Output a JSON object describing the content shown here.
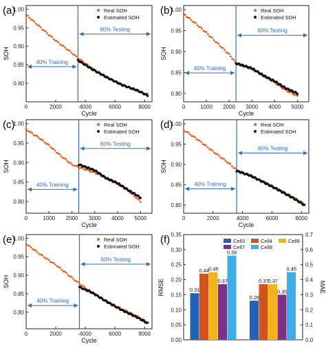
{
  "colors": {
    "real": "#E8601C",
    "estimated": "#111111",
    "axis": "#222222",
    "divider": "#2E6DB4",
    "annotation": "#2E6DB4"
  },
  "chart_data": [
    {
      "type": "scatter",
      "panel_label": "(a)",
      "xlabel": "Cycle",
      "ylabel": "SOH",
      "xlim": [
        0,
        8500
      ],
      "ylim": [
        0.75,
        1.01
      ],
      "xticks": [
        0,
        2000,
        4000,
        6000,
        8000
      ],
      "yticks": [
        0.8,
        0.85,
        0.9,
        0.95,
        1.0
      ],
      "legend": [
        "Real SOH",
        "Estimated SOH"
      ],
      "legend_placement": "top-right",
      "split_cycle": 3500,
      "train_label": "40% Training",
      "test_label": "60% Testing",
      "train_arrow_y": 0.845,
      "test_arrow_y": 0.933,
      "series": [
        {
          "name": "Real SOH",
          "x": [
            0,
            1000,
            2000,
            3000,
            3500,
            4500,
            5500,
            6500,
            7500,
            8200
          ],
          "y": [
            0.985,
            0.95,
            0.915,
            0.885,
            0.868,
            0.839,
            0.815,
            0.796,
            0.78,
            0.77
          ]
        },
        {
          "name": "Estimated SOH",
          "x": [
            3500,
            4500,
            5500,
            6500,
            7500,
            8200
          ],
          "y": [
            0.862,
            0.837,
            0.815,
            0.795,
            0.781,
            0.767
          ]
        }
      ]
    },
    {
      "type": "scatter",
      "panel_label": "(b)",
      "xlabel": "Cycle",
      "ylabel": "SOH",
      "xlim": [
        0,
        5500
      ],
      "ylim": [
        0.78,
        1.01
      ],
      "xticks": [
        0,
        1000,
        2000,
        3000,
        4000,
        5000
      ],
      "yticks": [
        0.8,
        0.85,
        0.9,
        0.95,
        1.0
      ],
      "legend": [
        "Real SOH",
        "Estimated SOH"
      ],
      "legend_placement": "top-right",
      "split_cycle": 2300,
      "train_label": "40% Training",
      "test_label": "60% Testing",
      "train_arrow_y": 0.849,
      "test_arrow_y": 0.939,
      "series": [
        {
          "name": "Real SOH",
          "x": [
            0,
            500,
            1000,
            1500,
            2000,
            2300,
            3000,
            3500,
            4000,
            4500,
            5000
          ],
          "y": [
            0.99,
            0.968,
            0.945,
            0.919,
            0.893,
            0.873,
            0.858,
            0.842,
            0.826,
            0.807,
            0.794
          ]
        },
        {
          "name": "Estimated SOH",
          "x": [
            2300,
            3000,
            3500,
            4000,
            4500,
            5000
          ],
          "y": [
            0.872,
            0.86,
            0.843,
            0.829,
            0.812,
            0.8
          ]
        }
      ]
    },
    {
      "type": "scatter",
      "panel_label": "(c)",
      "xlabel": "Cycle",
      "ylabel": "SOH",
      "xlim": [
        0,
        5500
      ],
      "ylim": [
        0.77,
        1.01
      ],
      "xticks": [
        0,
        1000,
        2000,
        3000,
        4000,
        5000
      ],
      "yticks": [
        0.8,
        0.85,
        0.9,
        0.95,
        1.0
      ],
      "legend": [
        "Real SOH",
        "Estimated SOH"
      ],
      "legend_placement": "top-right",
      "split_cycle": 2300,
      "train_label": "40% Training",
      "test_label": "60% Testing",
      "train_arrow_y": 0.831,
      "test_arrow_y": 0.936,
      "series": [
        {
          "name": "Real SOH",
          "x": [
            0,
            500,
            1000,
            1500,
            2000,
            2300,
            3000,
            3500,
            4000,
            4500,
            5000
          ],
          "y": [
            0.985,
            0.966,
            0.944,
            0.918,
            0.895,
            0.888,
            0.874,
            0.86,
            0.845,
            0.826,
            0.8
          ]
        },
        {
          "name": "Estimated SOH",
          "x": [
            2300,
            3000,
            3500,
            4000,
            4500,
            5000
          ],
          "y": [
            0.895,
            0.88,
            0.86,
            0.847,
            0.828,
            0.81
          ]
        }
      ]
    },
    {
      "type": "scatter",
      "panel_label": "(d)",
      "xlabel": "Cycle",
      "ylabel": "SOH",
      "xlim": [
        0,
        8500
      ],
      "ylim": [
        0.78,
        1.01
      ],
      "xticks": [
        0,
        2000,
        4000,
        6000,
        8000
      ],
      "yticks": [
        0.8,
        0.85,
        0.9,
        0.95,
        1.0
      ],
      "legend": [
        "Real SOH",
        "Estimated SOH"
      ],
      "legend_placement": "top-right",
      "split_cycle": 3600,
      "train_label": "40% Training",
      "test_label": "60% Testing",
      "train_arrow_y": 0.84,
      "test_arrow_y": 0.928,
      "series": [
        {
          "name": "Real SOH",
          "x": [
            0,
            1000,
            2000,
            3000,
            3600,
            4500,
            5500,
            6500,
            7500,
            8200
          ],
          "y": [
            0.985,
            0.96,
            0.932,
            0.905,
            0.886,
            0.873,
            0.856,
            0.838,
            0.818,
            0.803
          ]
        },
        {
          "name": "Estimated SOH",
          "x": [
            3600,
            4500,
            5500,
            6500,
            7500,
            8200
          ],
          "y": [
            0.884,
            0.873,
            0.855,
            0.836,
            0.816,
            0.8
          ]
        }
      ]
    },
    {
      "type": "scatter",
      "panel_label": "(e)",
      "xlabel": "Cycle",
      "ylabel": "SOH",
      "xlim": [
        0,
        8500
      ],
      "ylim": [
        0.755,
        1.01
      ],
      "xticks": [
        0,
        2000,
        4000,
        6000,
        8000
      ],
      "yticks": [
        0.8,
        0.85,
        0.9,
        0.95,
        1.0
      ],
      "legend": [
        "Real SOH",
        "Estimated SOH"
      ],
      "legend_placement": "top-right",
      "split_cycle": 3600,
      "train_label": "40% Training",
      "test_label": "60% Testing",
      "train_arrow_y": 0.818,
      "test_arrow_y": 0.93,
      "series": [
        {
          "name": "Real SOH",
          "x": [
            0,
            1000,
            2000,
            3000,
            3600,
            4500,
            5500,
            6500,
            7500,
            8200
          ],
          "y": [
            0.985,
            0.955,
            0.928,
            0.896,
            0.877,
            0.852,
            0.828,
            0.808,
            0.789,
            0.773
          ]
        },
        {
          "name": "Estimated SOH",
          "x": [
            3600,
            4500,
            5500,
            6500,
            7500,
            8200
          ],
          "y": [
            0.868,
            0.852,
            0.827,
            0.805,
            0.786,
            0.77
          ]
        }
      ]
    },
    {
      "type": "bar",
      "panel_label": "(f)",
      "ylabel": "RMSE",
      "ylabel_right": "MAE",
      "ylim": [
        0,
        0.35
      ],
      "ylim_right": [
        0,
        0.7
      ],
      "yticks": [
        0.0,
        0.05,
        0.1,
        0.15,
        0.2,
        0.25,
        0.3,
        0.35
      ],
      "yticks_right": [
        0.0,
        0.1,
        0.2,
        0.3,
        0.4,
        0.5,
        0.6,
        0.7
      ],
      "legend_placement": "top",
      "series": [
        {
          "name": "Cell3",
          "color": "#2161B8",
          "values": [
            0.155,
            0.13
          ]
        },
        {
          "name": "Cell4",
          "color": "#D0531E",
          "values": [
            0.22,
            0.185
          ]
        },
        {
          "name": "Cell6",
          "color": "#F2B31C",
          "values": [
            0.225,
            0.185
          ]
        },
        {
          "name": "Cell7",
          "color": "#7E2F8E",
          "values": [
            0.185,
            0.15
          ]
        },
        {
          "name": "Cell8",
          "color": "#3DAEE9",
          "values": [
            0.28,
            0.225
          ]
        }
      ],
      "data_labels": [
        [
          "0.31",
          "0.44",
          "0.45",
          "0.37",
          "0.56"
        ],
        [
          "0.26",
          "0.37",
          "0.37",
          "0.30",
          "0.45"
        ]
      ]
    }
  ]
}
